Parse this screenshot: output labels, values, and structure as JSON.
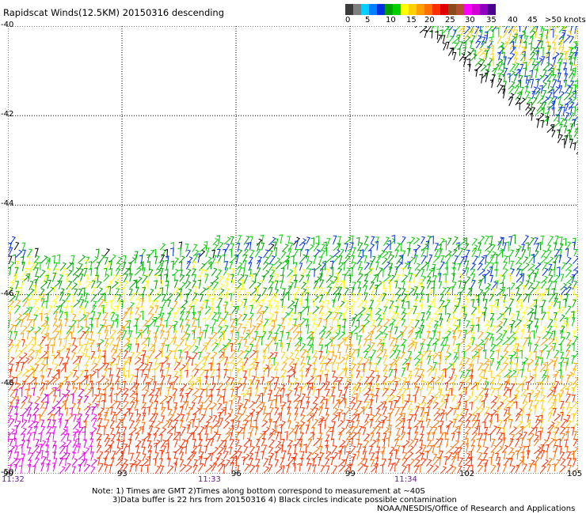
{
  "title": "Rapidscat Winds(12.5KM) 20150316 descending",
  "colorbar": {
    "colors": [
      "#3a3a3a",
      "#7f7f7f",
      "#00cfff",
      "#0080ff",
      "#0030e0",
      "#00a000",
      "#00d000",
      "#ffff00",
      "#ffd000",
      "#ffa000",
      "#ff7000",
      "#ff3000",
      "#e00000",
      "#8b4a1a",
      "#b05030",
      "#ff00ff",
      "#d000d0",
      "#9000c0",
      "#4c0090"
    ],
    "labels": [
      "0",
      "5",
      "10",
      "15",
      "20",
      "25",
      "30",
      "35",
      "40",
      "45",
      ">50 knots"
    ]
  },
  "map": {
    "lon_range": [
      90,
      105
    ],
    "lat_range": [
      -50,
      -40
    ],
    "lat_labels": [
      "-40",
      "-42",
      "-44",
      "-46",
      "-48",
      "-50"
    ],
    "lon_labels": [
      "90",
      "93",
      "96",
      "99",
      "102",
      "105"
    ],
    "times": [
      "11:32",
      "11:33",
      "11:34"
    ]
  },
  "notes": [
    "Note: 1) Times are GMT 2)Times along bottom correspond to measurement at ~40S",
    "3)Data buffer is 22 hrs from 20150316 4) Black circles indicate possible contamination"
  ],
  "credit": "NOAA/NESDIS/Office of Research and Applications",
  "wind_colors": {
    "black": "#000000",
    "blue": "#0030e0",
    "green": "#00a000",
    "lime": "#00d000",
    "yellow": "#ffff00",
    "gold": "#ffd000",
    "orange": "#ffa000",
    "dkorange": "#ff7000",
    "red": "#ff3000",
    "magenta": "#ff00ff",
    "purple": "#d000d0"
  }
}
